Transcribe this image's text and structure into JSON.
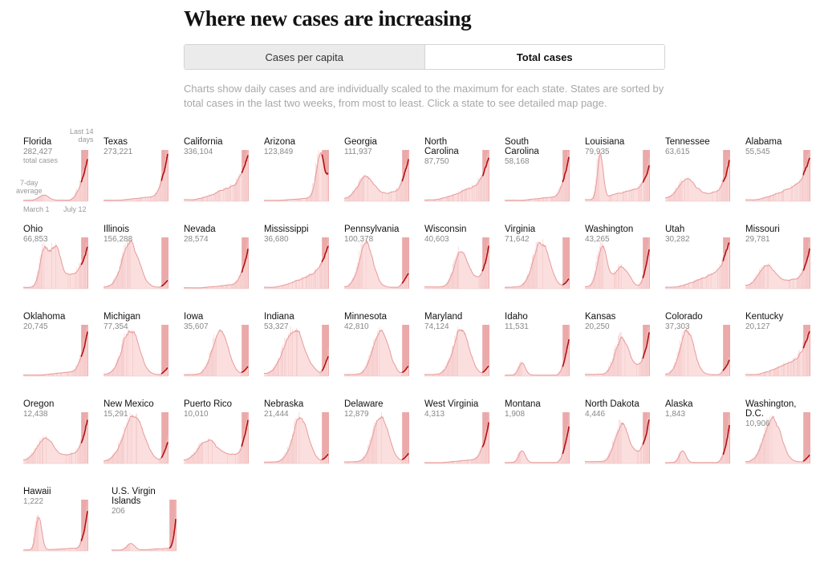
{
  "page": {
    "title": "Where new cases are increasing",
    "toggle": {
      "option_per_capita": "Cases per capita",
      "option_total": "Total cases",
      "selected": "Total cases"
    },
    "note": "Charts show daily cases and are individually scaled to the maximum for each state. States are sorted by total cases in the last two weeks, from most to least. Click a state to see detailed map page."
  },
  "annotations": {
    "total_cases": "total cases",
    "last_14_days": "Last 14\ndays",
    "seven_day_average": "7-day\naverage",
    "x_start": "March 1",
    "x_end": "July 12"
  },
  "chart_data": {
    "type": "area",
    "x_start": "March 1",
    "x_end": "July 12",
    "scaling": "individually scaled to the maximum for each state",
    "highlight": "last 14 days",
    "colors": {
      "area": "#fbdcdc",
      "line": "#e89a9a",
      "recent_band": "#eba9a9",
      "recent_line": "#b30f0f",
      "bars": "#f4c6c6"
    },
    "states": [
      {
        "name": "Florida",
        "total": "282,427",
        "shape": "florida"
      },
      {
        "name": "Texas",
        "total": "273,221",
        "shape": "late_surge"
      },
      {
        "name": "California",
        "total": "336,104",
        "shape": "gradual_surge"
      },
      {
        "name": "Arizona",
        "total": "123,849",
        "shape": "surge_peak"
      },
      {
        "name": "Georgia",
        "total": "111,937",
        "shape": "steady_surge"
      },
      {
        "name": "North\nCarolina",
        "total": "87,750",
        "shape": "gradual_surge"
      },
      {
        "name": "South\nCarolina",
        "total": "58,168",
        "shape": "late_surge"
      },
      {
        "name": "Louisiana",
        "total": "79,935",
        "shape": "louisiana"
      },
      {
        "name": "Tennessee",
        "total": "63,615",
        "shape": "steady_surge"
      },
      {
        "name": "Alabama",
        "total": "55,545",
        "shape": "gradual_surge"
      },
      {
        "name": "Ohio",
        "total": "66,853",
        "shape": "ohio"
      },
      {
        "name": "Illinois",
        "total": "156,288",
        "shape": "early_peak"
      },
      {
        "name": "Nevada",
        "total": "28,574",
        "shape": "late_surge"
      },
      {
        "name": "Mississippi",
        "total": "36,680",
        "shape": "gradual_surge"
      },
      {
        "name": "Pennsylvania",
        "total": "100,378",
        "shape": "early_peak_rise"
      },
      {
        "name": "Wisconsin",
        "total": "40,603",
        "shape": "mid_surge"
      },
      {
        "name": "Virginia",
        "total": "71,642",
        "shape": "mid_peak"
      },
      {
        "name": "Washington",
        "total": "43,265",
        "shape": "double_peak"
      },
      {
        "name": "Utah",
        "total": "30,282",
        "shape": "gradual_surge"
      },
      {
        "name": "Missouri",
        "total": "29,781",
        "shape": "steady_surge"
      },
      {
        "name": "Oklahoma",
        "total": "20,745",
        "shape": "late_surge"
      },
      {
        "name": "Michigan",
        "total": "77,354",
        "shape": "early_peak"
      },
      {
        "name": "Iowa",
        "total": "35,607",
        "shape": "mid_peak"
      },
      {
        "name": "Indiana",
        "total": "53,327",
        "shape": "plateau_rise"
      },
      {
        "name": "Minnesota",
        "total": "42,810",
        "shape": "mid_peak"
      },
      {
        "name": "Maryland",
        "total": "74,124",
        "shape": "mid_peak"
      },
      {
        "name": "Idaho",
        "total": "11,531",
        "shape": "idaho"
      },
      {
        "name": "Kansas",
        "total": "20,250",
        "shape": "mid_surge"
      },
      {
        "name": "Colorado",
        "total": "37,303",
        "shape": "early_peak_rise"
      },
      {
        "name": "Kentucky",
        "total": "20,127",
        "shape": "gradual_surge"
      },
      {
        "name": "Oregon",
        "total": "12,438",
        "shape": "steady_surge"
      },
      {
        "name": "New Mexico",
        "total": "15,291",
        "shape": "plateau_rise"
      },
      {
        "name": "Puerto Rico",
        "total": "10,010",
        "shape": "noisy_rise"
      },
      {
        "name": "Nebraska",
        "total": "21,444",
        "shape": "mid_peak"
      },
      {
        "name": "Delaware",
        "total": "12,879",
        "shape": "mid_peak"
      },
      {
        "name": "West Virginia",
        "total": "4,313",
        "shape": "late_surge"
      },
      {
        "name": "Montana",
        "total": "1,908",
        "shape": "idaho"
      },
      {
        "name": "North Dakota",
        "total": "4,446",
        "shape": "mid_surge"
      },
      {
        "name": "Alaska",
        "total": "1,843",
        "shape": "idaho"
      },
      {
        "name": "Washington,\nD.C.",
        "total": "10,906",
        "shape": "early_peak"
      },
      {
        "name": "Hawaii",
        "total": "1,222",
        "shape": "hawaii"
      },
      {
        "name": "U.S. Virgin\nIslands",
        "total": "206",
        "shape": "usvi"
      }
    ]
  }
}
